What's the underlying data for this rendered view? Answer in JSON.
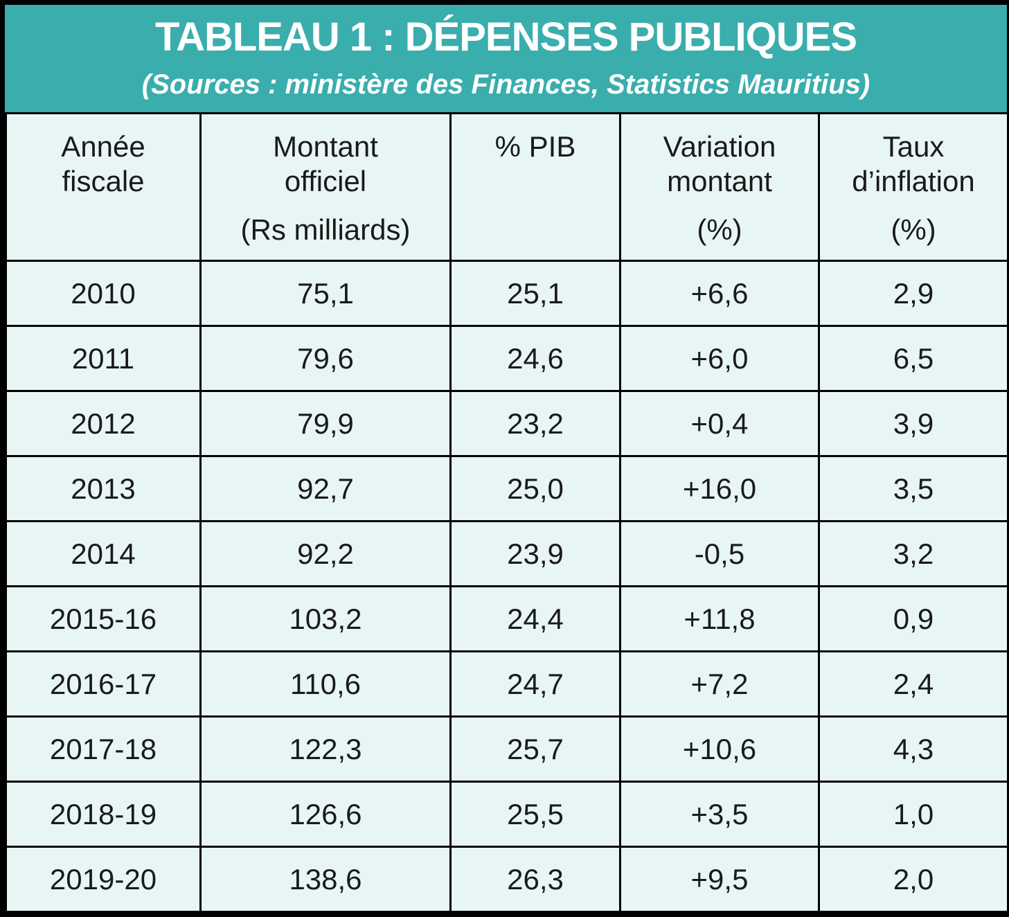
{
  "title": "TABLEAU 1 : DÉPENSES PUBLIQUES",
  "subtitle": "(Sources : ministère des Finances, Statistics Mauritius)",
  "colors": {
    "header_band": "#3aadad",
    "cell_background": "#e8f5f5",
    "border": "#000000"
  },
  "columns": [
    {
      "line1": "Année",
      "line2": "fiscale",
      "unit": ""
    },
    {
      "line1": "Montant",
      "line2": "officiel",
      "unit": "(Rs milliards)"
    },
    {
      "line1": "% PIB",
      "line2": "",
      "unit": ""
    },
    {
      "line1": "Variation",
      "line2": "montant",
      "unit": "(%)"
    },
    {
      "line1": "Taux",
      "line2": "d’inflation",
      "unit": "(%)"
    }
  ],
  "chart_data": {
    "type": "table",
    "title": "TABLEAU 1 : DÉPENSES PUBLIQUES",
    "subtitle": "(Sources : ministère des Finances, Statistics Mauritius)",
    "headers": [
      "Année fiscale",
      "Montant officiel (Rs milliards)",
      "% PIB",
      "Variation montant (%)",
      "Taux d’inflation (%)"
    ],
    "rows": [
      [
        "2010",
        "75,1",
        "25,1",
        "+6,6",
        "2,9"
      ],
      [
        "2011",
        "79,6",
        "24,6",
        "+6,0",
        "6,5"
      ],
      [
        "2012",
        "79,9",
        "23,2",
        "+0,4",
        "3,9"
      ],
      [
        "2013",
        "92,7",
        "25,0",
        "+16,0",
        "3,5"
      ],
      [
        "2014",
        "92,2",
        "23,9",
        "-0,5",
        "3,2"
      ],
      [
        "2015-16",
        "103,2",
        "24,4",
        "+11,8",
        "0,9"
      ],
      [
        "2016-17",
        "110,6",
        "24,7",
        "+7,2",
        "2,4"
      ],
      [
        "2017-18",
        "122,3",
        "25,7",
        "+10,6",
        "4,3"
      ],
      [
        "2018-19",
        "126,6",
        "25,5",
        "+3,5",
        "1,0"
      ],
      [
        "2019-20",
        "138,6",
        "26,3",
        "+9,5",
        "2,0"
      ]
    ]
  }
}
